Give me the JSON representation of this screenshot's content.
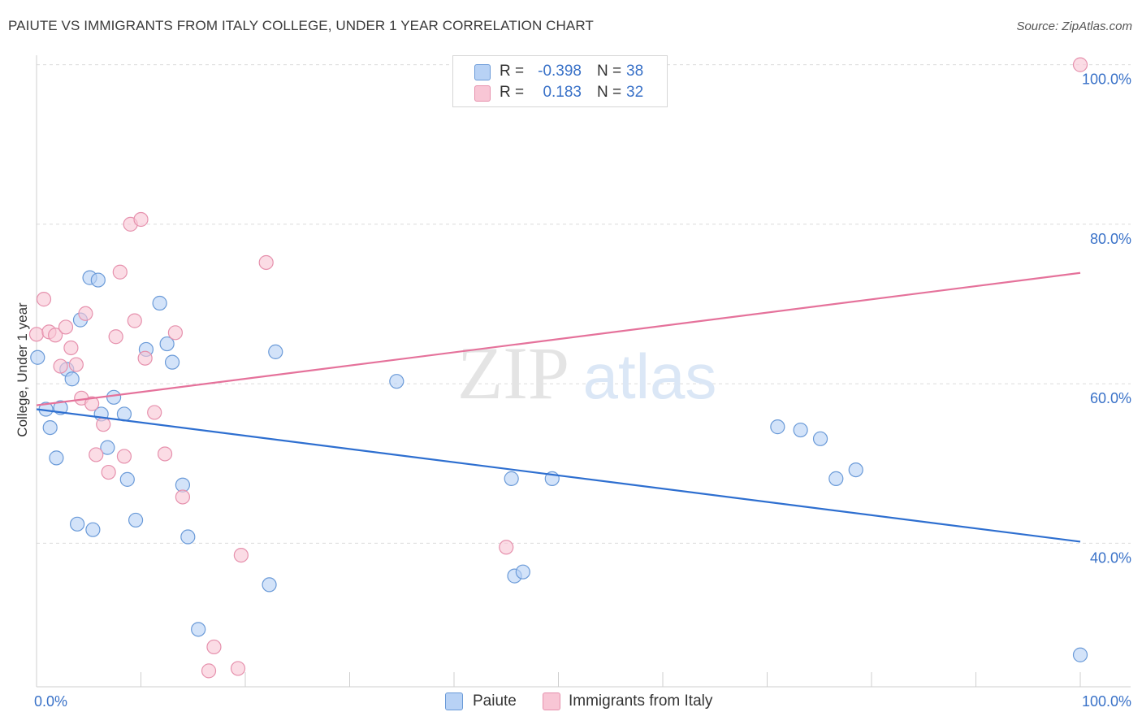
{
  "header": {
    "title": "PAIUTE VS IMMIGRANTS FROM ITALY COLLEGE, UNDER 1 YEAR CORRELATION CHART",
    "source": "Source: ZipAtlas.com"
  },
  "watermark": {
    "zip": "ZIP",
    "atlas": "atlas"
  },
  "legend": {
    "rows": [
      {
        "r_label": "R =",
        "r_value": "-0.398",
        "n_label": "N =",
        "n_value": "38"
      },
      {
        "r_label": "R =",
        "r_value": "0.183",
        "n_label": "N =",
        "n_value": "32"
      }
    ]
  },
  "colors": {
    "paiute_fill": "#b8d2f5",
    "paiute_stroke": "#6a9ad8",
    "paiute_line": "#2e6fd0",
    "italy_fill": "#f8c6d5",
    "italy_stroke": "#e691ad",
    "italy_line": "#e5729b",
    "axis_text": "#3a72c8",
    "grid": "#dcdcdc"
  },
  "chart_data": {
    "type": "scatter",
    "title": "PAIUTE VS IMMIGRANTS FROM ITALY COLLEGE, UNDER 1 YEAR CORRELATION CHART",
    "xlabel": "",
    "ylabel": "College, Under 1 year",
    "xlim": [
      0,
      100
    ],
    "ylim": [
      22,
      102
    ],
    "x_tick_labels": [
      "0.0%",
      "100.0%"
    ],
    "y_tick_values": [
      40,
      60,
      80,
      100
    ],
    "y_tick_labels": [
      "40.0%",
      "60.0%",
      "80.0%",
      "100.0%"
    ],
    "grid": true,
    "legend_position": "top-center",
    "series": [
      {
        "name": "Paiute",
        "trend": {
          "x": [
            0,
            100
          ],
          "y": [
            56.8,
            40.2
          ]
        },
        "points": [
          {
            "x": 0.1,
            "y": 63.3
          },
          {
            "x": 0.9,
            "y": 56.8
          },
          {
            "x": 1.3,
            "y": 54.5
          },
          {
            "x": 1.9,
            "y": 50.7
          },
          {
            "x": 2.3,
            "y": 57.0
          },
          {
            "x": 2.9,
            "y": 61.8
          },
          {
            "x": 3.4,
            "y": 60.6
          },
          {
            "x": 3.9,
            "y": 42.4
          },
          {
            "x": 4.2,
            "y": 68.0
          },
          {
            "x": 5.1,
            "y": 73.3
          },
          {
            "x": 5.4,
            "y": 41.7
          },
          {
            "x": 5.9,
            "y": 73.0
          },
          {
            "x": 6.2,
            "y": 56.2
          },
          {
            "x": 6.8,
            "y": 52.0
          },
          {
            "x": 7.4,
            "y": 58.3
          },
          {
            "x": 8.4,
            "y": 56.2
          },
          {
            "x": 8.7,
            "y": 48.0
          },
          {
            "x": 9.5,
            "y": 42.9
          },
          {
            "x": 10.5,
            "y": 64.3
          },
          {
            "x": 11.8,
            "y": 70.1
          },
          {
            "x": 12.5,
            "y": 65.0
          },
          {
            "x": 13.0,
            "y": 62.7
          },
          {
            "x": 14.0,
            "y": 47.3
          },
          {
            "x": 14.5,
            "y": 40.8
          },
          {
            "x": 15.5,
            "y": 29.2
          },
          {
            "x": 22.3,
            "y": 34.8
          },
          {
            "x": 22.9,
            "y": 64.0
          },
          {
            "x": 34.5,
            "y": 60.3
          },
          {
            "x": 45.5,
            "y": 48.1
          },
          {
            "x": 45.8,
            "y": 35.9
          },
          {
            "x": 46.6,
            "y": 36.4
          },
          {
            "x": 49.4,
            "y": 48.1
          },
          {
            "x": 71.0,
            "y": 54.6
          },
          {
            "x": 73.2,
            "y": 54.2
          },
          {
            "x": 75.1,
            "y": 53.1
          },
          {
            "x": 76.6,
            "y": 48.1
          },
          {
            "x": 78.5,
            "y": 49.2
          },
          {
            "x": 100.0,
            "y": 26.0
          }
        ]
      },
      {
        "name": "Immigrants from Italy",
        "trend": {
          "x": [
            0,
            100
          ],
          "y": [
            57.3,
            73.9
          ]
        },
        "points": [
          {
            "x": 0.0,
            "y": 66.2
          },
          {
            "x": 0.7,
            "y": 70.6
          },
          {
            "x": 1.2,
            "y": 66.5
          },
          {
            "x": 1.8,
            "y": 66.1
          },
          {
            "x": 2.3,
            "y": 62.2
          },
          {
            "x": 2.8,
            "y": 67.1
          },
          {
            "x": 3.3,
            "y": 64.5
          },
          {
            "x": 3.8,
            "y": 62.4
          },
          {
            "x": 4.3,
            "y": 58.2
          },
          {
            "x": 4.7,
            "y": 68.8
          },
          {
            "x": 5.3,
            "y": 57.5
          },
          {
            "x": 5.7,
            "y": 51.1
          },
          {
            "x": 6.4,
            "y": 54.9
          },
          {
            "x": 6.9,
            "y": 48.9
          },
          {
            "x": 7.6,
            "y": 65.9
          },
          {
            "x": 8.0,
            "y": 74.0
          },
          {
            "x": 8.4,
            "y": 50.9
          },
          {
            "x": 9.0,
            "y": 80.0
          },
          {
            "x": 9.4,
            "y": 67.9
          },
          {
            "x": 10.0,
            "y": 80.6
          },
          {
            "x": 10.4,
            "y": 63.2
          },
          {
            "x": 11.3,
            "y": 56.4
          },
          {
            "x": 12.3,
            "y": 51.2
          },
          {
            "x": 13.3,
            "y": 66.4
          },
          {
            "x": 14.0,
            "y": 45.8
          },
          {
            "x": 16.5,
            "y": 24.0
          },
          {
            "x": 17.0,
            "y": 27.0
          },
          {
            "x": 19.3,
            "y": 24.3
          },
          {
            "x": 19.6,
            "y": 38.5
          },
          {
            "x": 22.0,
            "y": 75.2
          },
          {
            "x": 45.0,
            "y": 39.5
          },
          {
            "x": 100.0,
            "y": 100.0
          }
        ]
      }
    ]
  },
  "bottom_legend": {
    "items": [
      {
        "label": "Paiute"
      },
      {
        "label": "Immigrants from Italy"
      }
    ]
  }
}
